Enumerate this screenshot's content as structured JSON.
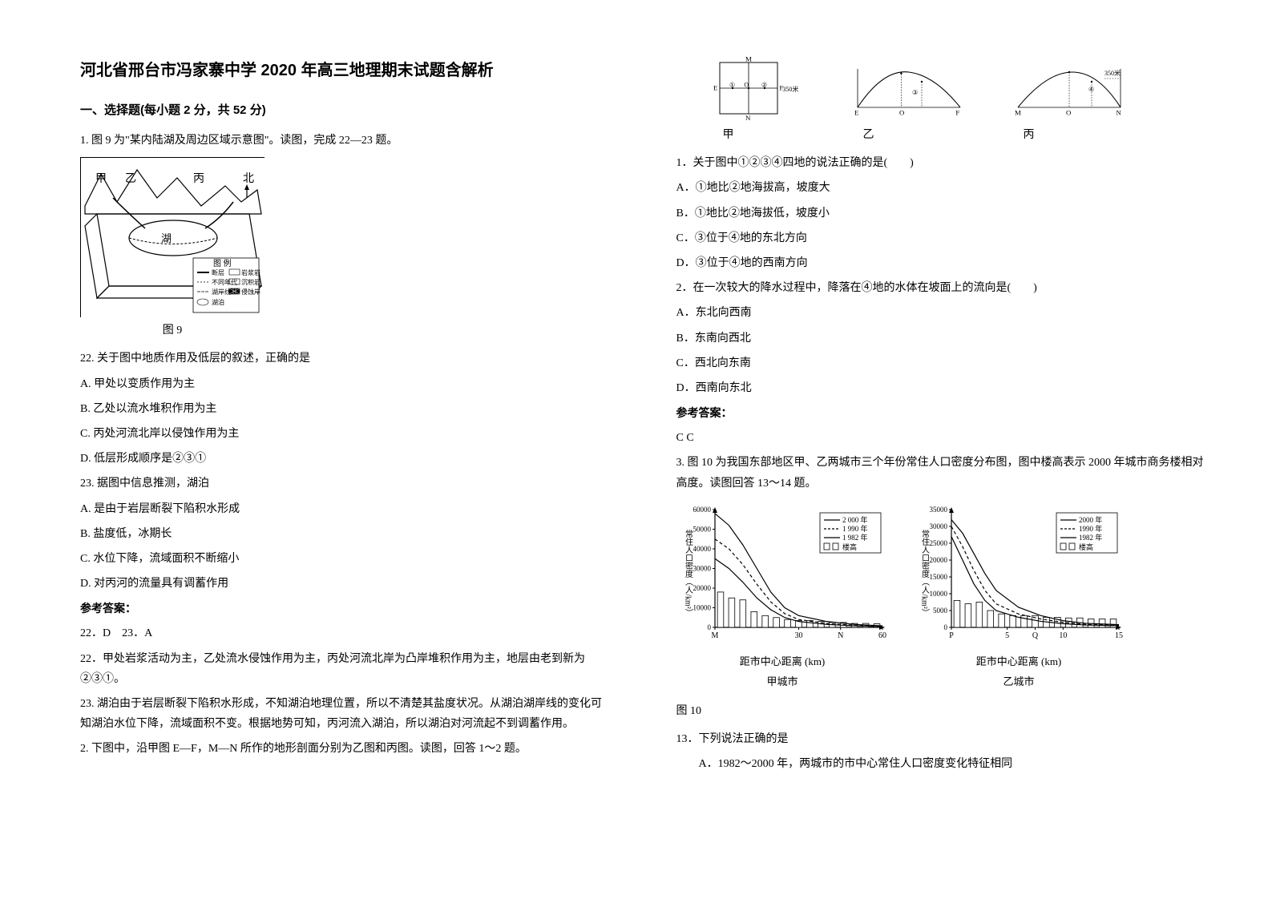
{
  "title": "河北省邢台市冯家寨中学 2020 年高三地理期末试题含解析",
  "section1_header": "一、选择题(每小题 2 分，共 52 分)",
  "q1_intro": "1. 图 9 为\"某内陆湖及周边区域示意图\"。读图，完成 22—23 题。",
  "fig9_caption": "图 9",
  "fig9_labels": {
    "jia": "甲",
    "yi": "乙",
    "bing": "丙",
    "north": "北"
  },
  "fig9_legend_title": "图 例",
  "fig9_legend": {
    "a": "断层",
    "b": "岩浆岩",
    "c": "不同年代",
    "c2": "沉积岩",
    "d": "湖岸线",
    "e": "湖泊",
    "f": "侵蚀岸"
  },
  "q22": "22. 关于图中地质作用及低层的叙述，正确的是",
  "q22_a": "A. 甲处以变质作用为主",
  "q22_b": "B. 乙处以流水堆积作用为主",
  "q22_c": "C. 丙处河流北岸以侵蚀作用为主",
  "q22_d": "D. 低层形成顺序是②③①",
  "q23": "23. 据图中信息推测，湖泊",
  "q23_a": "A. 是由于岩层断裂下陷积水形成",
  "q23_b": "B. 盐度低，冰期长",
  "q23_c": "C. 水位下降，流域面积不断缩小",
  "q23_d": "D. 对丙河的流量具有调蓄作用",
  "answer_label": "参考答案：",
  "ans_22_23": "22．D　23．A",
  "exp_22": "22．甲处岩浆活动为主，乙处流水侵蚀作用为主，丙处河流北岸为凸岸堆积作用为主，地层由老到新为②③①。",
  "exp_23": "23. 湖泊由于岩层断裂下陷积水形成，不知湖泊地理位置，所以不清楚其盐度状况。从湖泊湖岸线的变化可知湖泊水位下降，流域面积不变。根据地势可知，丙河流入湖泊，所以湖泊对河流起不到调蓄作用。",
  "q2_intro": "2. 下图中，沿甲图 E—F，M—N 所作的地形剖面分别为乙图和丙图。读图，回答 1～2 题。",
  "profile_height": "350米",
  "profile_jia": "甲",
  "profile_yi": "乙",
  "profile_bing": "丙",
  "profile_m": "M",
  "profile_n": "N",
  "profile_e": "E",
  "profile_f": "F",
  "profile_o": "O",
  "profile_1": "①",
  "profile_2": "②",
  "profile_3": "③",
  "profile_4": "④",
  "q2_1": "1．关于图中①②③④四地的说法正确的是(　　)",
  "q2_1_a": "A．①地比②地海拔高，坡度大",
  "q2_1_b": "B．①地比②地海拔低，坡度小",
  "q2_1_c": "C．③位于④地的东北方向",
  "q2_1_d": "D．③位于④地的西南方向",
  "q2_2": "2．在一次较大的降水过程中，降落在④地的水体在坡面上的流向是(　　)",
  "q2_2_a": "A．东北向西南",
  "q2_2_b": "B．东南向西北",
  "q2_2_c": "C．西北向东南",
  "q2_2_d": "D．西南向东北",
  "ans_q2": "C C",
  "q3_intro": "3. 图 10 为我国东部地区甲、乙两城市三个年份常住人口密度分布图，图中楼高表示 2000 年城市商务楼相对高度。读图回答 13～14 题。",
  "fig10_caption": "图 10",
  "chart_jia": {
    "city": "甲城市",
    "ylabel": "常住人口密度（人/km²）",
    "xlabel": "距市中心距离 (km)",
    "ymax": 60000,
    "ytick_step": 10000,
    "yticks": [
      "0",
      "10000",
      "20000",
      "30000",
      "40000",
      "50000",
      "60000"
    ],
    "xmax": 60,
    "xticks": [
      "M",
      "30",
      "N",
      "60"
    ],
    "xtick_pos": [
      0,
      30,
      45,
      60
    ],
    "series_2000": [
      [
        0,
        58000
      ],
      [
        5,
        52000
      ],
      [
        10,
        42000
      ],
      [
        15,
        30000
      ],
      [
        20,
        18000
      ],
      [
        25,
        10000
      ],
      [
        30,
        6000
      ],
      [
        40,
        3000
      ],
      [
        50,
        1500
      ],
      [
        60,
        800
      ]
    ],
    "series_1990": [
      [
        0,
        45000
      ],
      [
        5,
        40000
      ],
      [
        10,
        32000
      ],
      [
        15,
        22000
      ],
      [
        20,
        13000
      ],
      [
        25,
        7000
      ],
      [
        30,
        4000
      ],
      [
        40,
        2000
      ],
      [
        50,
        1000
      ],
      [
        60,
        500
      ]
    ],
    "series_1982": [
      [
        0,
        35000
      ],
      [
        5,
        30000
      ],
      [
        10,
        23000
      ],
      [
        15,
        15000
      ],
      [
        20,
        9000
      ],
      [
        25,
        5000
      ],
      [
        30,
        3000
      ],
      [
        40,
        1500
      ],
      [
        50,
        800
      ],
      [
        60,
        400
      ]
    ],
    "buildings": [
      [
        2,
        18000
      ],
      [
        6,
        15000
      ],
      [
        10,
        14000
      ],
      [
        14,
        8000
      ],
      [
        18,
        6000
      ],
      [
        22,
        5000
      ],
      [
        26,
        4000
      ],
      [
        30,
        3500
      ],
      [
        34,
        3500
      ],
      [
        38,
        3000
      ],
      [
        42,
        2500
      ],
      [
        46,
        2500
      ],
      [
        50,
        2000
      ],
      [
        54,
        2000
      ],
      [
        58,
        1800
      ]
    ],
    "legend_2000": "2 000 年",
    "legend_1990": "1 990 年",
    "legend_1982": "1 982 年",
    "legend_bldg": "楼高"
  },
  "chart_yi": {
    "city": "乙城市",
    "ylabel": "常住人口密度（人/km²）",
    "xlabel": "距市中心距离 (km)",
    "ymax": 35000,
    "ytick_step": 5000,
    "yticks": [
      "0",
      "5000",
      "10000",
      "15000",
      "20000",
      "25000",
      "30000",
      "35000"
    ],
    "xmax": 15,
    "xticks": [
      "P",
      "5",
      "Q",
      "10",
      "15"
    ],
    "xtick_pos": [
      0,
      5,
      7.5,
      10,
      15
    ],
    "series_2000": [
      [
        0,
        32000
      ],
      [
        1,
        28000
      ],
      [
        2,
        22000
      ],
      [
        3,
        16000
      ],
      [
        4,
        11000
      ],
      [
        6,
        6000
      ],
      [
        8,
        3500
      ],
      [
        10,
        2000
      ],
      [
        12,
        1200
      ],
      [
        15,
        800
      ]
    ],
    "series_1990": [
      [
        0,
        30000
      ],
      [
        1,
        24000
      ],
      [
        2,
        17000
      ],
      [
        3,
        11000
      ],
      [
        4,
        7000
      ],
      [
        6,
        4000
      ],
      [
        8,
        2500
      ],
      [
        10,
        1500
      ],
      [
        12,
        900
      ],
      [
        15,
        600
      ]
    ],
    "series_1982": [
      [
        0,
        27000
      ],
      [
        1,
        20000
      ],
      [
        2,
        13000
      ],
      [
        3,
        8000
      ],
      [
        4,
        5000
      ],
      [
        6,
        3000
      ],
      [
        8,
        1800
      ],
      [
        10,
        1100
      ],
      [
        12,
        700
      ],
      [
        15,
        500
      ]
    ],
    "buildings": [
      [
        0.5,
        8000
      ],
      [
        1.5,
        7000
      ],
      [
        2.5,
        7500
      ],
      [
        3.5,
        5000
      ],
      [
        4.5,
        4000
      ],
      [
        5.5,
        3500
      ],
      [
        6.5,
        3500
      ],
      [
        7.5,
        3500
      ],
      [
        8.5,
        3000
      ],
      [
        9.5,
        3000
      ],
      [
        10.5,
        2800
      ],
      [
        11.5,
        2800
      ],
      [
        12.5,
        2500
      ],
      [
        13.5,
        2500
      ],
      [
        14.5,
        2500
      ]
    ],
    "legend_2000": "2000 年",
    "legend_1990": "1990 年",
    "legend_1982": "1982 年",
    "legend_bldg": "楼高"
  },
  "q13": "13．下列说法正确的是",
  "q13_a": "A．1982～2000 年，两城市的市中心常住人口密度变化特征相同",
  "colors": {
    "text": "#000000",
    "line": "#000000",
    "bar_fill": "#ffffff",
    "bar_stroke": "#000000"
  }
}
